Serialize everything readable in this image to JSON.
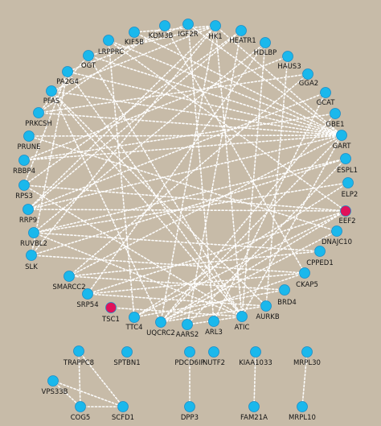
{
  "colors": {
    "background": "#c7bba8",
    "node": "#1ab8ec",
    "highlight": "#e0125a",
    "edge": "#ffffff"
  },
  "nodes": [
    {
      "id": "KDM3B",
      "label": "KDM3B"
    },
    {
      "id": "IGF2R",
      "label": "IGF2R"
    },
    {
      "id": "HK1",
      "label": "HK1"
    },
    {
      "id": "HEATR1",
      "label": "HEATR1"
    },
    {
      "id": "KIF5B",
      "label": "KIF5B"
    },
    {
      "id": "HDLBP",
      "label": "HDLBP"
    },
    {
      "id": "LRPPRC",
      "label": "LRPPRC"
    },
    {
      "id": "HAUS3",
      "label": "HAUS3"
    },
    {
      "id": "OGT",
      "label": "OGT"
    },
    {
      "id": "GGA2",
      "label": "GGA2"
    },
    {
      "id": "PA2G4",
      "label": "PA2G4"
    },
    {
      "id": "GCAT",
      "label": "GCAT"
    },
    {
      "id": "PFAS",
      "label": "PFAS"
    },
    {
      "id": "GBE1",
      "label": "GBE1"
    },
    {
      "id": "PRKCSH",
      "label": "PRKCSH"
    },
    {
      "id": "GART",
      "label": "GART"
    },
    {
      "id": "PRUNE",
      "label": "PRUNE"
    },
    {
      "id": "ESPL1",
      "label": "ESPL1"
    },
    {
      "id": "RBBP4",
      "label": "RBBP4"
    },
    {
      "id": "ELP2",
      "label": "ELP2"
    },
    {
      "id": "RPS3",
      "label": "RPS3"
    },
    {
      "id": "EEF2",
      "label": "EEF2",
      "highlight": true
    },
    {
      "id": "RRP9",
      "label": "RRP9"
    },
    {
      "id": "DNAJC10",
      "label": "DNAJC10"
    },
    {
      "id": "RUVBL2",
      "label": "RUVBL2"
    },
    {
      "id": "CPPED1",
      "label": "CPPED1"
    },
    {
      "id": "SLK",
      "label": "SLK"
    },
    {
      "id": "CKAP5",
      "label": "CKAP5"
    },
    {
      "id": "SMARCC2",
      "label": "SMARCC2"
    },
    {
      "id": "BRD4",
      "label": "BRD4"
    },
    {
      "id": "SRP54",
      "label": "SRP54"
    },
    {
      "id": "AURKB",
      "label": "AURKB"
    },
    {
      "id": "TSC1",
      "label": "TSC1",
      "highlight": true
    },
    {
      "id": "ATIC",
      "label": "ATIC"
    },
    {
      "id": "TTC4",
      "label": "TTC4"
    },
    {
      "id": "ARL3",
      "label": "ARL3"
    },
    {
      "id": "UQCRC2",
      "label": "UQCRC2"
    },
    {
      "id": "AARS2",
      "label": "AARS2"
    },
    {
      "id": "TRAPPC8",
      "label": "TRAPPC8"
    },
    {
      "id": "SPTBN1",
      "label": "SPTBN1"
    },
    {
      "id": "PDCD6IP",
      "label": "PDCD6IP"
    },
    {
      "id": "NUTF2",
      "label": "NUTF2"
    },
    {
      "id": "KIAA1033",
      "label": "KIAA1033"
    },
    {
      "id": "MRPL30",
      "label": "MRPL30"
    },
    {
      "id": "VPS33B",
      "label": "VPS33B"
    },
    {
      "id": "COG5",
      "label": "COG5"
    },
    {
      "id": "SCFD1",
      "label": "SCFD1"
    },
    {
      "id": "DPP3",
      "label": "DPP3"
    },
    {
      "id": "FAM21A",
      "label": "FAM21A"
    },
    {
      "id": "MRPL10",
      "label": "MRPL10"
    }
  ],
  "edges": [
    [
      "HK1",
      "KIF5B"
    ],
    [
      "HK1",
      "OGT"
    ],
    [
      "HK1",
      "PFAS"
    ],
    [
      "HK1",
      "RRP9"
    ],
    [
      "HK1",
      "SLK"
    ],
    [
      "HK1",
      "ATIC"
    ],
    [
      "HK1",
      "UQCRC2"
    ],
    [
      "HK1",
      "GART"
    ],
    [
      "IGF2R",
      "PA2G4"
    ],
    [
      "IGF2R",
      "ARL3"
    ],
    [
      "IGF2R",
      "GART"
    ],
    [
      "KDM3B",
      "CKAP5"
    ],
    [
      "KDM3B",
      "PRKCSH"
    ],
    [
      "HEATR1",
      "RPS3"
    ],
    [
      "HEATR1",
      "AARS2"
    ],
    [
      "HEATR1",
      "RRP9"
    ],
    [
      "KIF5B",
      "GART"
    ],
    [
      "HDLBP",
      "RUVBL2"
    ],
    [
      "HDLBP",
      "SRP54"
    ],
    [
      "HDLBP",
      "ATIC"
    ],
    [
      "LRPPRC",
      "GART"
    ],
    [
      "LRPPRC",
      "TTC4"
    ],
    [
      "LRPPRC",
      "EEF2"
    ],
    [
      "OGT",
      "GART"
    ],
    [
      "OGT",
      "ATIC"
    ],
    [
      "OGT",
      "PRKCSH"
    ],
    [
      "HAUS3",
      "RBBP4"
    ],
    [
      "HAUS3",
      "AURKB"
    ],
    [
      "GGA2",
      "PRKCSH"
    ],
    [
      "GGA2",
      "SMARCC2"
    ],
    [
      "PA2G4",
      "GART"
    ],
    [
      "PA2G4",
      "ATIC"
    ],
    [
      "PA2G4",
      "SLK"
    ],
    [
      "PA2G4",
      "RPS3"
    ],
    [
      "GCAT",
      "RRP9"
    ],
    [
      "GCAT",
      "ARL3"
    ],
    [
      "PFAS",
      "GART"
    ],
    [
      "PFAS",
      "ATIC"
    ],
    [
      "PFAS",
      "UQCRC2"
    ],
    [
      "PFAS",
      "AURKB"
    ],
    [
      "GBE1",
      "RBBP4"
    ],
    [
      "GBE1",
      "UQCRC2"
    ],
    [
      "PRKCSH",
      "GART"
    ],
    [
      "GART",
      "PRUNE"
    ],
    [
      "GART",
      "RRP9"
    ],
    [
      "GART",
      "ATIC"
    ],
    [
      "GART",
      "UQCRC2"
    ],
    [
      "GART",
      "RBBP4"
    ],
    [
      "GART",
      "SMARCC2"
    ],
    [
      "ESPL1",
      "SLK"
    ],
    [
      "ESPL1",
      "AARS2"
    ],
    [
      "ESPL1",
      "RUVBL2"
    ],
    [
      "ELP2",
      "TTC4"
    ],
    [
      "ELP2",
      "RUVBL2"
    ],
    [
      "RPS3",
      "EEF2"
    ],
    [
      "RPS3",
      "ATIC"
    ],
    [
      "EEF2",
      "RRP9"
    ],
    [
      "EEF2",
      "TTC4"
    ],
    [
      "EEF2",
      "SRP54"
    ],
    [
      "EEF2",
      "UQCRC2"
    ],
    [
      "DNAJC10",
      "PRUNE"
    ],
    [
      "DNAJC10",
      "UQCRC2"
    ],
    [
      "RUVBL2",
      "ATIC"
    ],
    [
      "RUVBL2",
      "CPPED1"
    ],
    [
      "CPPED1",
      "SMARCC2"
    ],
    [
      "SLK",
      "CKAP5"
    ],
    [
      "CKAP5",
      "SRP54"
    ],
    [
      "CKAP5",
      "UQCRC2"
    ],
    [
      "SMARCC2",
      "BRD4"
    ],
    [
      "BRD4",
      "TTC4"
    ],
    [
      "SRP54",
      "AURKB"
    ],
    [
      "AURKB",
      "UQCRC2"
    ],
    [
      "TSC1",
      "ATIC"
    ],
    [
      "ATIC",
      "AARS2"
    ],
    [
      "TRAPPC8",
      "COG5"
    ],
    [
      "TRAPPC8",
      "SCFD1"
    ],
    [
      "VPS33B",
      "SCFD1"
    ],
    [
      "VPS33B",
      "COG5"
    ],
    [
      "COG5",
      "SCFD1"
    ],
    [
      "PDCD6IP",
      "DPP3"
    ],
    [
      "KIAA1033",
      "FAM21A"
    ],
    [
      "MRPL30",
      "MRPL10"
    ]
  ]
}
